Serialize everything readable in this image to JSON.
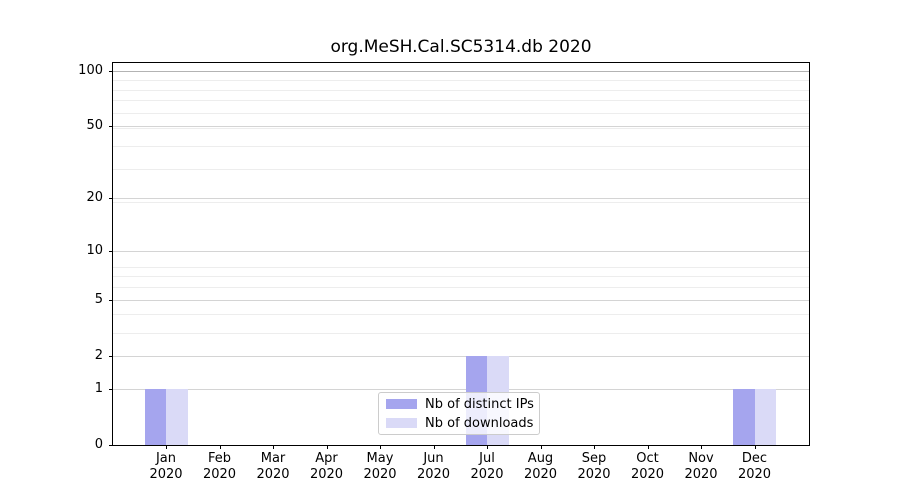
{
  "chart_data": {
    "type": "bar",
    "title": "org.MeSH.Cal.SC5314.db 2020",
    "x_year": "2020",
    "categories": [
      "Jan",
      "Feb",
      "Mar",
      "Apr",
      "May",
      "Jun",
      "Jul",
      "Aug",
      "Sep",
      "Oct",
      "Nov",
      "Dec"
    ],
    "series": [
      {
        "name": "Nb of distinct IPs",
        "color": "#a5a5ee",
        "values": [
          1,
          0,
          0,
          0,
          0,
          0,
          2,
          0,
          0,
          0,
          0,
          1
        ]
      },
      {
        "name": "Nb of downloads",
        "color": "#dadaf7",
        "values": [
          1,
          0,
          0,
          0,
          0,
          0,
          2,
          0,
          0,
          0,
          0,
          1
        ]
      }
    ],
    "y_ticks": [
      0,
      1,
      2,
      5,
      10,
      20,
      50,
      100
    ],
    "y_minor_gridlines": [
      1,
      2,
      3,
      4,
      5,
      6,
      7,
      8,
      19,
      29,
      39,
      49,
      59,
      69,
      79,
      89
    ],
    "y_scale": "log10(1+x)",
    "ylim": [
      0,
      110
    ],
    "xlabel": "",
    "ylabel": "",
    "grid": true,
    "legend_position": "bottom-center"
  }
}
